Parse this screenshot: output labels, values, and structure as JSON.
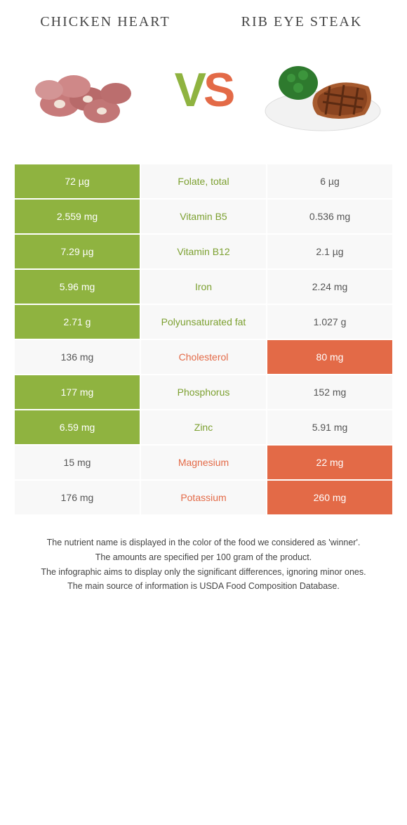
{
  "colors": {
    "left": "#8fb340",
    "right": "#e36a47",
    "neutral_bg": "#f8f8f8",
    "page_bg": "#ffffff"
  },
  "foods": {
    "left": {
      "name": "CHICKEN HEART"
    },
    "right": {
      "name": "RIB EYE STEAK"
    }
  },
  "vs": "VS",
  "image_alt": {
    "left": "chicken-hearts",
    "right": "rib-eye-steak-plate"
  },
  "typography": {
    "title_fontsize": 20,
    "cell_fontsize": 14,
    "vs_fontsize": 68,
    "footer_fontsize": 12.5
  },
  "rows": [
    {
      "label": "Folate, total",
      "left": "72 µg",
      "right": "6 µg",
      "winner": "left"
    },
    {
      "label": "Vitamin B5",
      "left": "2.559 mg",
      "right": "0.536 mg",
      "winner": "left"
    },
    {
      "label": "Vitamin B12",
      "left": "7.29 µg",
      "right": "2.1 µg",
      "winner": "left"
    },
    {
      "label": "Iron",
      "left": "5.96 mg",
      "right": "2.24 mg",
      "winner": "left"
    },
    {
      "label": "Polyunsaturated fat",
      "left": "2.71 g",
      "right": "1.027 g",
      "winner": "left"
    },
    {
      "label": "Cholesterol",
      "left": "136 mg",
      "right": "80 mg",
      "winner": "right"
    },
    {
      "label": "Phosphorus",
      "left": "177 mg",
      "right": "152 mg",
      "winner": "left"
    },
    {
      "label": "Zinc",
      "left": "6.59 mg",
      "right": "5.91 mg",
      "winner": "left"
    },
    {
      "label": "Magnesium",
      "left": "15 mg",
      "right": "22 mg",
      "winner": "right"
    },
    {
      "label": "Potassium",
      "left": "176 mg",
      "right": "260 mg",
      "winner": "right"
    }
  ],
  "footer": [
    "The nutrient name is displayed in the color of the food we considered as 'winner'.",
    "The amounts are specified per 100 gram of the product.",
    "The infographic aims to display only the significant differences, ignoring minor ones.",
    "The main source of information is USDA Food Composition Database."
  ]
}
